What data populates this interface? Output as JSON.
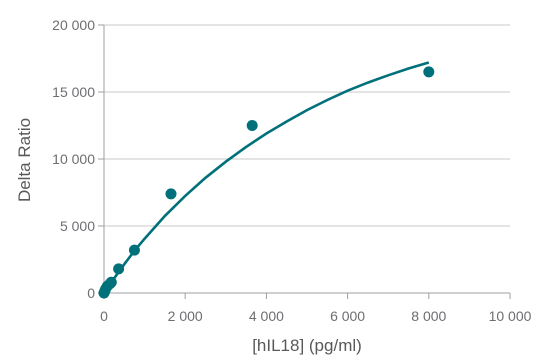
{
  "chart_data": {
    "type": "scatter",
    "title": "",
    "xlabel": "[hIL18] (pg/ml)",
    "ylabel": "Delta Ratio",
    "xlim": [
      0,
      10000
    ],
    "ylim": [
      0,
      20000
    ],
    "x_ticks": [
      0,
      2000,
      4000,
      6000,
      8000,
      10000
    ],
    "x_tick_labels": [
      "0",
      "2 000",
      "4 000",
      "6 000",
      "8 000",
      "10 000"
    ],
    "y_ticks": [
      0,
      5000,
      10000,
      15000,
      20000
    ],
    "y_tick_labels": [
      "0",
      "5 000",
      "10 000",
      "15 000",
      "20 000"
    ],
    "grid": "horizontal",
    "legend": "none",
    "colors": {
      "series": "#00707a",
      "grid": "#c8c8c8",
      "axis": "#9d9fa2",
      "text": "#6d6e71"
    },
    "series": [
      {
        "x": [
          0,
          20,
          40,
          80,
          150,
          180,
          360,
          750,
          1650,
          3650,
          8000
        ],
        "y": [
          0,
          150,
          300,
          500,
          700,
          800,
          1800,
          3200,
          7400,
          12500,
          16500
        ]
      }
    ],
    "fit_curve": {
      "x": [
        0,
        250,
        500,
        750,
        1000,
        1500,
        2000,
        2500,
        3000,
        3500,
        4000,
        4500,
        5000,
        5500,
        6000,
        6500,
        7000,
        7500,
        8000
      ],
      "y": [
        0,
        1100,
        2150,
        3150,
        4050,
        5750,
        7250,
        8600,
        9800,
        10900,
        11900,
        12800,
        13650,
        14400,
        15100,
        15700,
        16250,
        16750,
        17200
      ]
    }
  }
}
